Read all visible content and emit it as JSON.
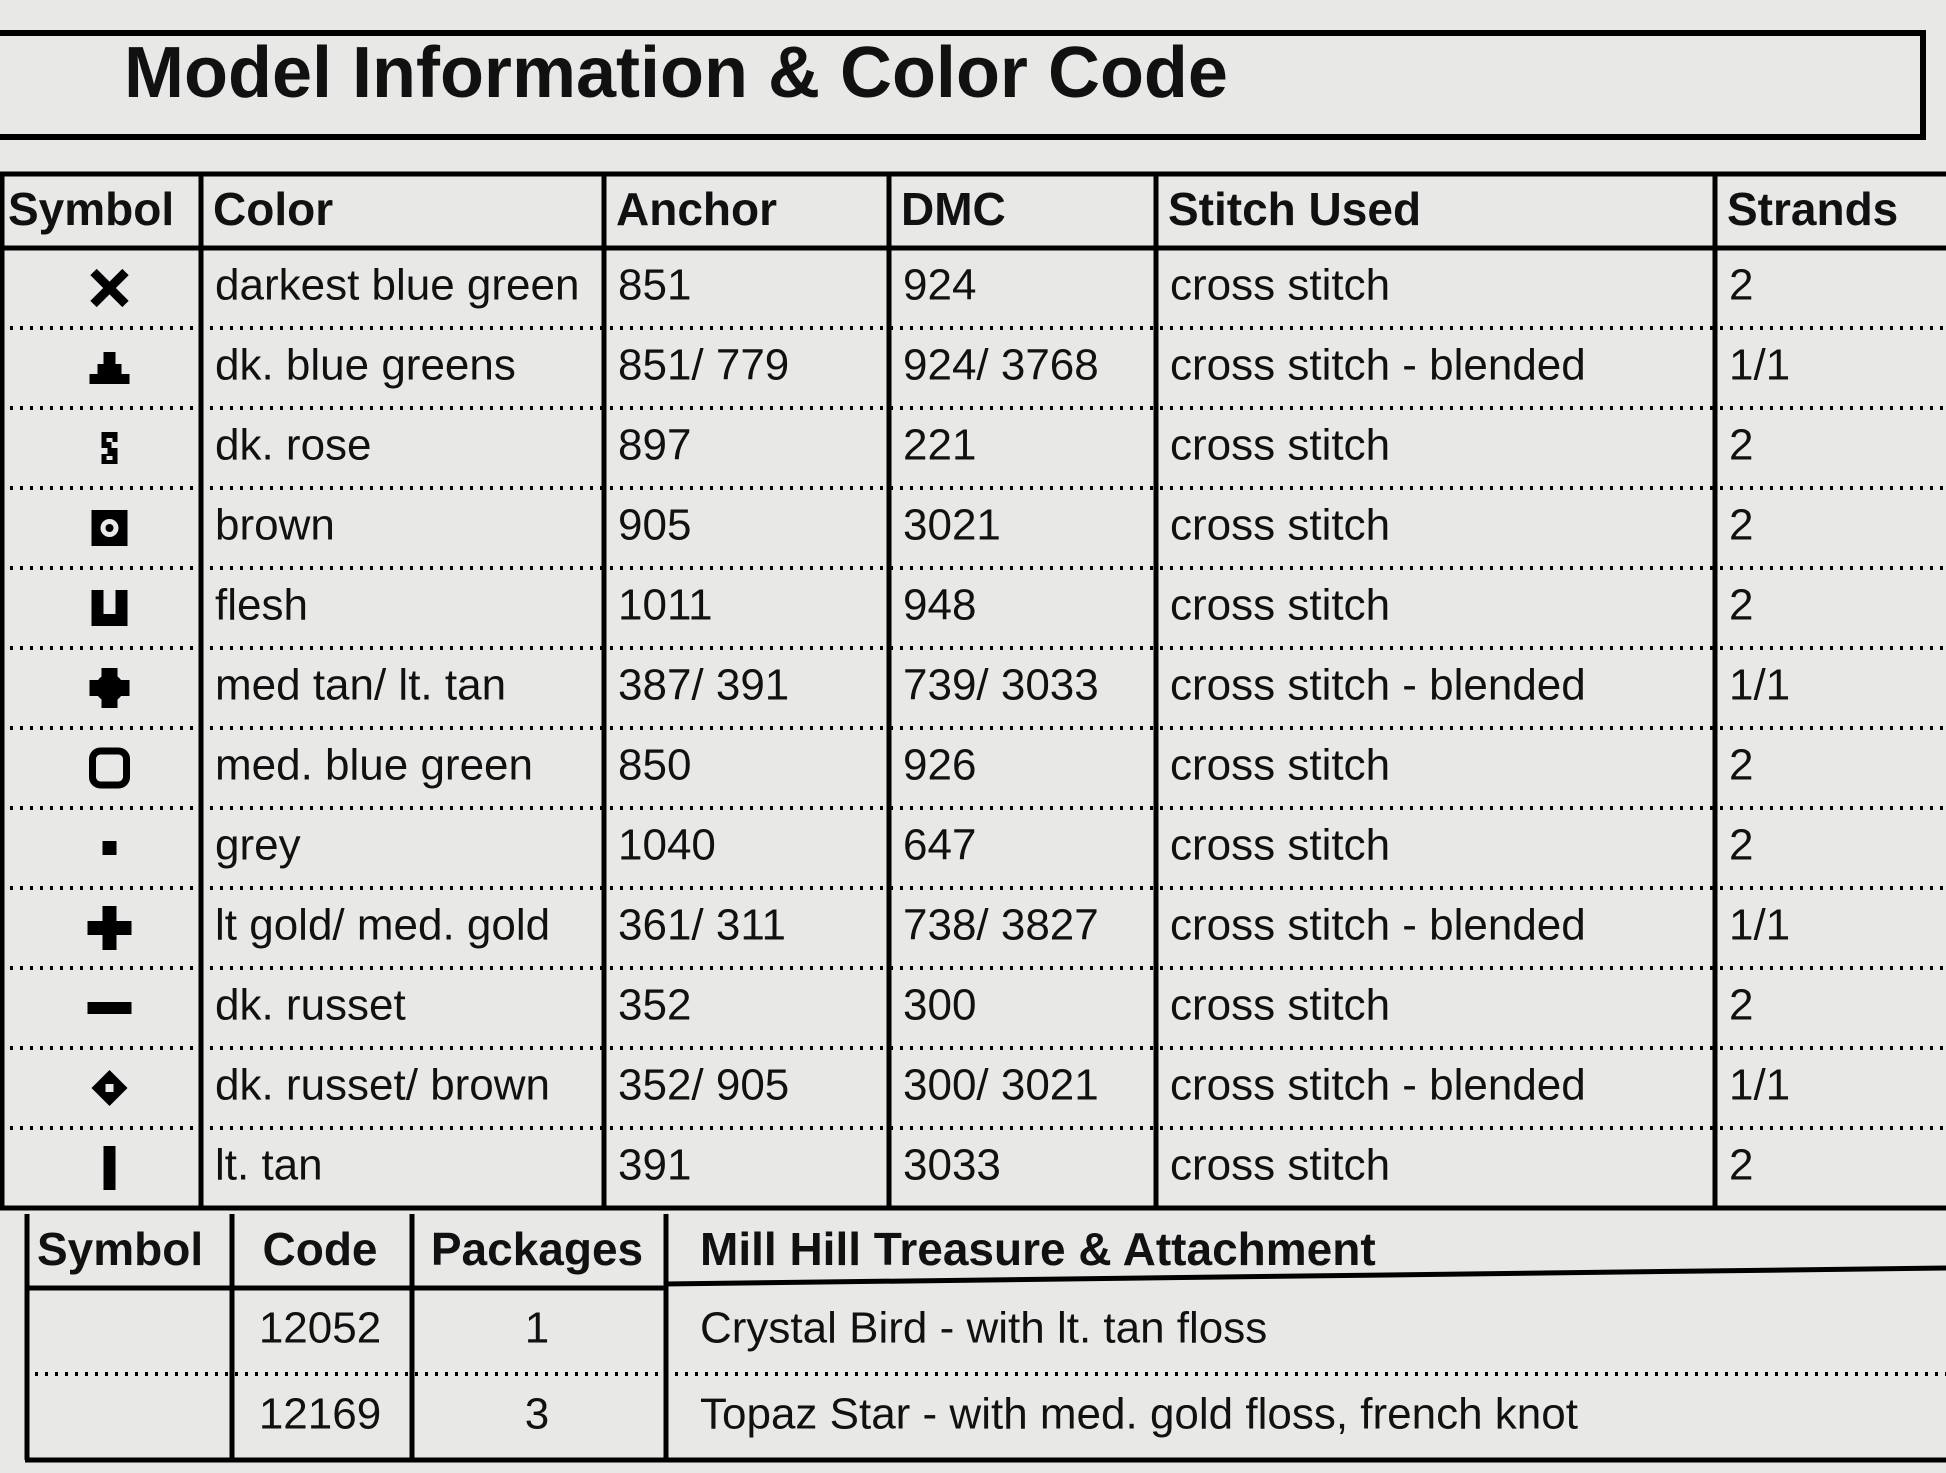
{
  "title": "Model Information & Color Code",
  "table": {
    "header": [
      "Symbol",
      "Color",
      "Anchor",
      "DMC",
      "Stitch Used",
      "Strands"
    ],
    "rows": [
      [
        "darkest blue green",
        "851",
        "924",
        "cross stitch",
        "2"
      ],
      [
        "dk. blue greens",
        "851/ 779",
        "924/ 3768",
        "cross stitch - blended",
        "1/1"
      ],
      [
        "dk. rose",
        "897",
        "221",
        "cross stitch",
        "2"
      ],
      [
        "brown",
        "905",
        "3021",
        "cross stitch",
        "2"
      ],
      [
        "flesh",
        "1011",
        "948",
        "cross stitch",
        "2"
      ],
      [
        "med tan/ lt. tan",
        "387/ 391",
        "739/ 3033",
        "cross stitch - blended",
        "1/1"
      ],
      [
        "med. blue green",
        "850",
        "926",
        "cross stitch",
        "2"
      ],
      [
        "grey",
        "1040",
        "647",
        "cross stitch",
        "2"
      ],
      [
        "lt gold/ med. gold",
        "361/ 311",
        "738/ 3827",
        "cross stitch - blended",
        "1/1"
      ],
      [
        "dk. russet",
        "352",
        "300",
        "cross stitch",
        "2"
      ],
      [
        "dk. russet/ brown",
        "352/ 905",
        "300/ 3021",
        "cross stitch - blended",
        "1/1"
      ],
      [
        "lt. tan",
        "391",
        "3033",
        "cross stitch",
        "2"
      ]
    ]
  },
  "mill_hill": {
    "header": [
      "Symbol",
      "Code",
      "Packages",
      "Mill Hill Treasure & Attachment"
    ],
    "rows": [
      [
        "12052",
        "1",
        "Crystal Bird - with lt. tan floss"
      ],
      [
        "12169",
        "3",
        "Topaz Star - with med. gold floss, french knot"
      ]
    ]
  }
}
